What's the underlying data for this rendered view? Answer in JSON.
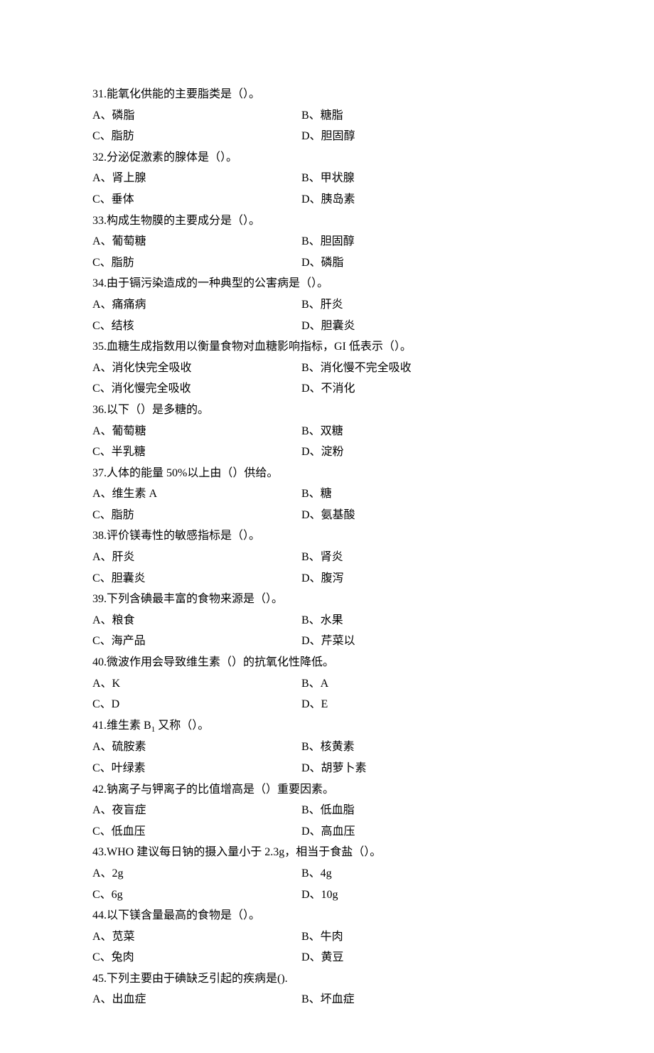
{
  "questions": [
    {
      "num": "31",
      "text": "能氧化供能的主要脂类是（）。",
      "a": "A、磷脂",
      "b": "B、糖脂",
      "c": "C、脂肪",
      "d": "D、胆固醇"
    },
    {
      "num": "32",
      "text": "分泌促激素的腺体是（）。",
      "a": "A、肾上腺",
      "b": "B、甲状腺",
      "c": "C、垂体",
      "d": "D、胰岛素"
    },
    {
      "num": "33",
      "text": "构成生物膜的主要成分是（）。",
      "a": "A、葡萄糖",
      "b": "B、胆固醇",
      "c": "C、脂肪",
      "d": "D、磷脂"
    },
    {
      "num": "34",
      "text": "由于镉污染造成的一种典型的公害病是（）。",
      "a": "A、痛痛病",
      "b": "B、肝炎",
      "c": "C、结核",
      "d": "D、胆囊炎"
    },
    {
      "num": "35",
      "text": "血糖生成指数用以衡量食物对血糖影响指标，GI 低表示（）。",
      "a": "A、消化快完全吸收",
      "b": "B、消化慢不完全吸收",
      "c": "C、消化慢完全吸收",
      "d": "D、不消化"
    },
    {
      "num": "36",
      "text": "以下（）是多糖的。",
      "a": "A、葡萄糖",
      "b": "B、双糖",
      "c": "C、半乳糖",
      "d": "D、淀粉"
    },
    {
      "num": "37",
      "text": "人体的能量 50%以上由（）供给。",
      "a": "A、维生素 A",
      "b": "B、糖",
      "c": "C、脂肪",
      "d": "D、氨基酸"
    },
    {
      "num": "38",
      "text": "评价镁毒性的敏感指标是（）。",
      "a": "A、肝炎",
      "b": "B、肾炎",
      "c": "C、胆囊炎",
      "d": "D、腹泻"
    },
    {
      "num": "39",
      "text": "下列含碘最丰富的食物来源是（）。",
      "a": "A、粮食",
      "b": "B、水果",
      "c": "C、海产品",
      "d": "D、芹菜以"
    },
    {
      "num": "40",
      "text": "微波作用会导致维生素（）的抗氧化性降低。",
      "a": "A、K",
      "b": "B、A",
      "c": "C、D",
      "d": "D、E"
    },
    {
      "num": "41",
      "text_prefix": "维生素 B",
      "text_sub": "1",
      "text_suffix": " 又称（）。",
      "a": "A、硫胺素",
      "b": "B、核黄素",
      "c": "C、叶绿素",
      "d": "D、胡萝卜素"
    },
    {
      "num": "42",
      "text": "钠离子与钾离子的比值增高是（）重要因素。",
      "a": "A、夜盲症",
      "b": "B、低血脂",
      "c": "C、低血压",
      "d": "D、高血压"
    },
    {
      "num": "43",
      "text": "WHO 建议每日钠的摄入量小于 2.3g，相当于食盐（）。",
      "a": "A、2g",
      "b": "B、4g",
      "c": "C、6g",
      "d": "D、10g"
    },
    {
      "num": "44",
      "text": "以下镁含量最高的食物是（）。",
      "a": "A、苋菜",
      "b": "B、牛肉",
      "c": "C、兔肉",
      "d": "D、黄豆"
    },
    {
      "num": "45",
      "text": "下列主要由于碘缺乏引起的疾病是().",
      "a": "A、出血症",
      "b": "B、坏血症",
      "c": "",
      "d": ""
    }
  ]
}
